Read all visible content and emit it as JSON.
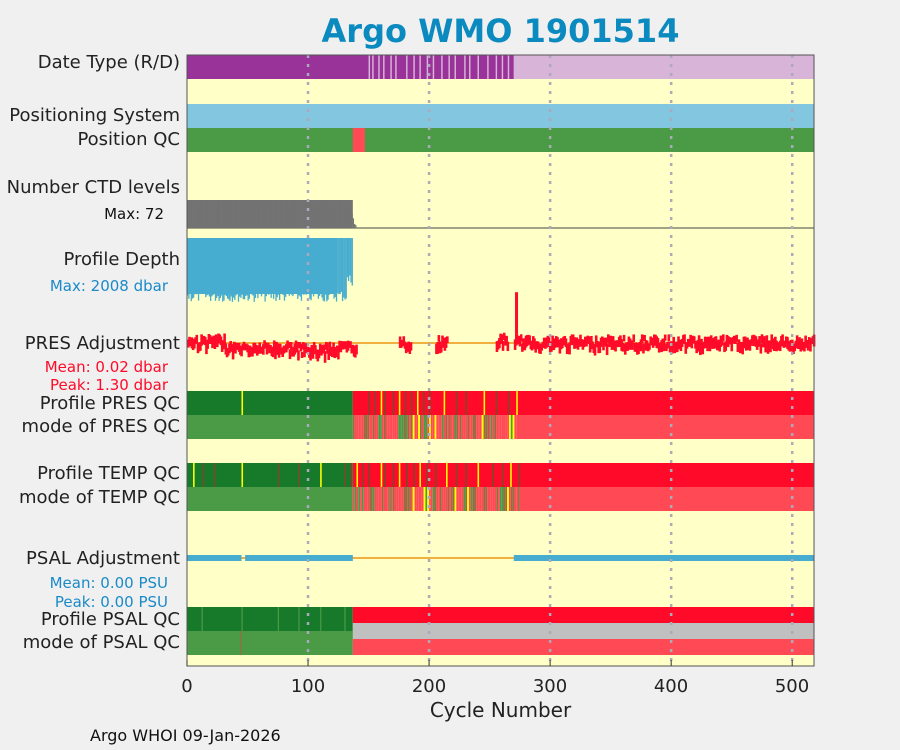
{
  "title": "Argo WMO 1901514",
  "footer": "Argo WHOI 09-Jan-2026",
  "colors": {
    "title": "#0b8ac0",
    "background": "#ffffc8",
    "rt": "#993399",
    "dm": "#d8b4d8",
    "argos": "#82c6e0",
    "qc_good": "#4a9a46",
    "qc_good_dark": "#177a2a",
    "qc_bad": "#ff0a28",
    "qc_bad_light": "#ff4a55",
    "qc_prob": "#7a4a2a",
    "qc_prob_light": "#9a6a40",
    "qc_probgood": "#ffff00",
    "ctd": "#737373",
    "depth": "#46acd0",
    "pres_adj": "#ff0a28",
    "psal_adj": "#46acd0",
    "zero_line": "#f0b040",
    "missing": "#c0c0c0",
    "blue_text": "#1a8ac8",
    "red_text": "#ff0a28"
  },
  "labels": {
    "date_type": "Date Type (R/D)",
    "positioning": "Positioning System",
    "position_qc": "Position QC",
    "num_ctd": "Number CTD levels",
    "ctd_max": "Max: 72",
    "profile_depth": "Profile Depth",
    "depth_max": "Max: 2008 dbar",
    "pres_adj": "PRES Adjustment",
    "pres_mean": "Mean: 0.02 dbar",
    "pres_peak": "Peak: 1.30 dbar",
    "prof_pres_qc": "Profile PRES QC",
    "mode_pres_qc": "mode of PRES QC",
    "prof_temp_qc": "Profile TEMP QC",
    "mode_temp_qc": "mode of TEMP QC",
    "psal_adj": "PSAL Adjustment",
    "psal_mean": "Mean: 0.00 PSU",
    "psal_peak": "Peak: 0.00 PSU",
    "prof_psal_qc": "Profile PSAL QC",
    "mode_psal_qc": "mode of PSAL QC"
  },
  "chart_data": {
    "type": "table",
    "title": "Argo WMO 1901514",
    "xlabel": "Cycle Number",
    "xlim": [
      0,
      518
    ],
    "xticks": [
      0,
      100,
      200,
      300,
      400,
      500
    ],
    "grid": true,
    "rows": {
      "date_type": {
        "realtime_cycles": [
          0,
          270
        ],
        "delayed_cycles": [
          270,
          518
        ],
        "delayed_flicker_cycles": [
          150,
          153,
          158,
          162,
          168,
          172,
          181,
          187,
          192,
          198,
          203,
          210,
          216,
          221,
          229,
          233,
          240,
          248,
          255,
          260,
          265
        ]
      },
      "positioning_system": {
        "system_cycles": [
          0,
          518
        ]
      },
      "position_qc": {
        "good_cycles": [
          0,
          518
        ],
        "bad_cycles": [
          137,
          147
        ]
      },
      "number_ctd_levels": {
        "max": 72,
        "cycles": [
          0,
          137
        ]
      },
      "profile_depth": {
        "max_dbar": 2008,
        "cycles": [
          0,
          137
        ]
      },
      "pres_adjustment": {
        "mean_dbar": 0.02,
        "peak_dbar": 1.3,
        "segments": [
          {
            "cycles": [
              0,
              32
            ],
            "level": 0.1
          },
          {
            "cycles": [
              32,
              60
            ],
            "level": -0.35
          },
          {
            "cycles": [
              60,
              90
            ],
            "level": -0.3
          },
          {
            "cycles": [
              90,
              115
            ],
            "level": -0.45
          },
          {
            "cycles": [
              115,
              140
            ],
            "level": -0.3
          },
          {
            "cycles": [
              175,
              185
            ],
            "level": 0.0
          },
          {
            "cycles": [
              205,
              215
            ],
            "level": 0.0
          },
          {
            "cycles": [
              255,
              265
            ],
            "level": 0.15
          },
          {
            "cycles": [
              270,
              518
            ],
            "level": 0.05
          }
        ],
        "spike_cycle": 271,
        "spike_level": 1.3
      },
      "profile_pres_qc": {
        "top_good_cycles": [
          0,
          137
        ],
        "top_bad_cycles": [
          137,
          518
        ],
        "top_flag_cycles": [
          45,
          150,
          155,
          160,
          163,
          170,
          175,
          180,
          185,
          190,
          195,
          200,
          212,
          222,
          230,
          245,
          255,
          265,
          272
        ]
      },
      "mode_pres_qc": {
        "good_cycles": [
          0,
          137
        ],
        "mixed_cycles": [
          137,
          272
        ],
        "bad_cycles": [
          272,
          518
        ]
      },
      "profile_temp_qc": {
        "top_good_cycles": [
          0,
          137
        ],
        "top_bad_cycles": [
          137,
          518
        ],
        "top_flag_cycles": [
          5,
          13,
          22,
          45,
          75,
          92,
          110,
          130,
          135,
          140,
          145,
          150,
          160,
          163,
          170,
          175,
          181,
          187,
          192,
          198,
          205,
          214,
          222,
          230,
          240,
          252,
          260,
          267,
          274
        ]
      },
      "mode_temp_qc": {
        "good_cycles": [
          0,
          137
        ],
        "mixed_cycles": [
          137,
          275
        ],
        "bad_cycles": [
          275,
          518
        ]
      },
      "psal_adjustment": {
        "mean_psu": 0.0,
        "peak_psu": 0.0,
        "data_cycles": [
          [
            0,
            45
          ],
          [
            48,
            137
          ],
          [
            270,
            518
          ]
        ]
      },
      "profile_psal_qc": {
        "top_good_cycles": [
          0,
          137
        ],
        "top_bad_cycles": [
          137,
          518
        ],
        "missing_cycles": [
          137,
          518
        ]
      },
      "mode_psal_qc": {
        "good_cycles": [
          0,
          137
        ],
        "bad_cycles": [
          137,
          518
        ]
      }
    }
  }
}
